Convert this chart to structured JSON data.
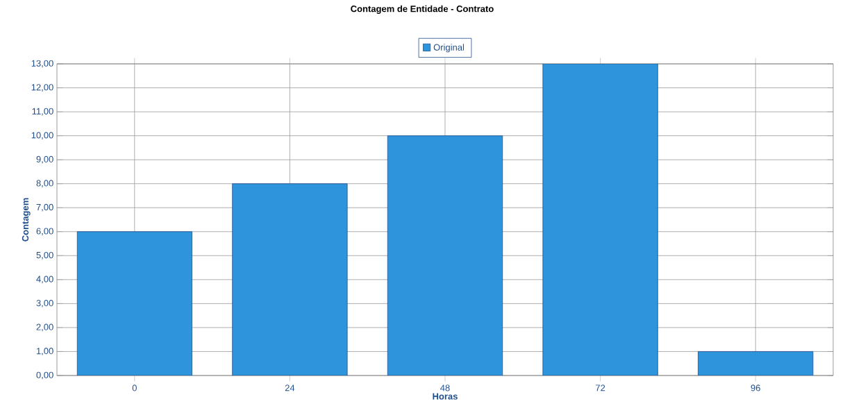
{
  "chart_data": {
    "type": "bar",
    "title": "Contagem de Entidade - Contrato",
    "xlabel": "Horas",
    "ylabel": "Contagem",
    "categories": [
      "0",
      "24",
      "48",
      "72",
      "96"
    ],
    "series": [
      {
        "name": "Original",
        "color": "#2e95dc",
        "values": [
          6,
          8,
          10,
          13,
          1
        ]
      }
    ],
    "ylim": [
      0,
      13
    ],
    "yticks": [
      {
        "value": 0,
        "label": "0,00"
      },
      {
        "value": 1,
        "label": "1,00"
      },
      {
        "value": 2,
        "label": "2,00"
      },
      {
        "value": 3,
        "label": "3,00"
      },
      {
        "value": 4,
        "label": "4,00"
      },
      {
        "value": 5,
        "label": "5,00"
      },
      {
        "value": 6,
        "label": "6,00"
      },
      {
        "value": 7,
        "label": "7,00"
      },
      {
        "value": 8,
        "label": "8,00"
      },
      {
        "value": 9,
        "label": "9,00"
      },
      {
        "value": 10,
        "label": "10,00"
      },
      {
        "value": 11,
        "label": "11,00"
      },
      {
        "value": 12,
        "label": "12,00"
      },
      {
        "value": 13,
        "label": "13,00"
      }
    ],
    "grid": true,
    "legend": "top"
  }
}
